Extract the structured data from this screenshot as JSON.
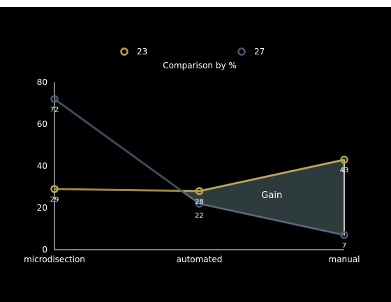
{
  "chart_data": {
    "type": "line",
    "title": "Comparison by %",
    "categories": [
      "microdisection",
      "automated",
      "manual"
    ],
    "series": [
      {
        "name": "23",
        "values": [
          29,
          28,
          43
        ],
        "color": "#b8a050"
      },
      {
        "name": "27",
        "values": [
          72,
          22,
          7
        ],
        "color": "#4a5670"
      }
    ],
    "ylim": [
      0,
      80
    ],
    "yticks": [
      0,
      20,
      40,
      60,
      80
    ],
    "grid": false,
    "legend_position": "top",
    "annotation": {
      "label": "Gain",
      "fill": "#2e3b3c"
    },
    "colors": {
      "background": "#000000",
      "axis": "#ffffff"
    }
  }
}
